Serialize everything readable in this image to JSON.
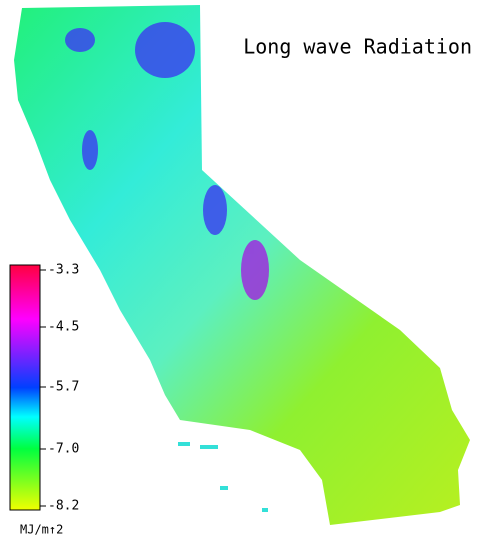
{
  "title": "Long wave Radiation",
  "colorbar": {
    "tick_labels": [
      "-3.3",
      "-4.5",
      "-5.7",
      "-7.0",
      "-8.2"
    ],
    "unit": "MJ/m↑2"
  }
}
